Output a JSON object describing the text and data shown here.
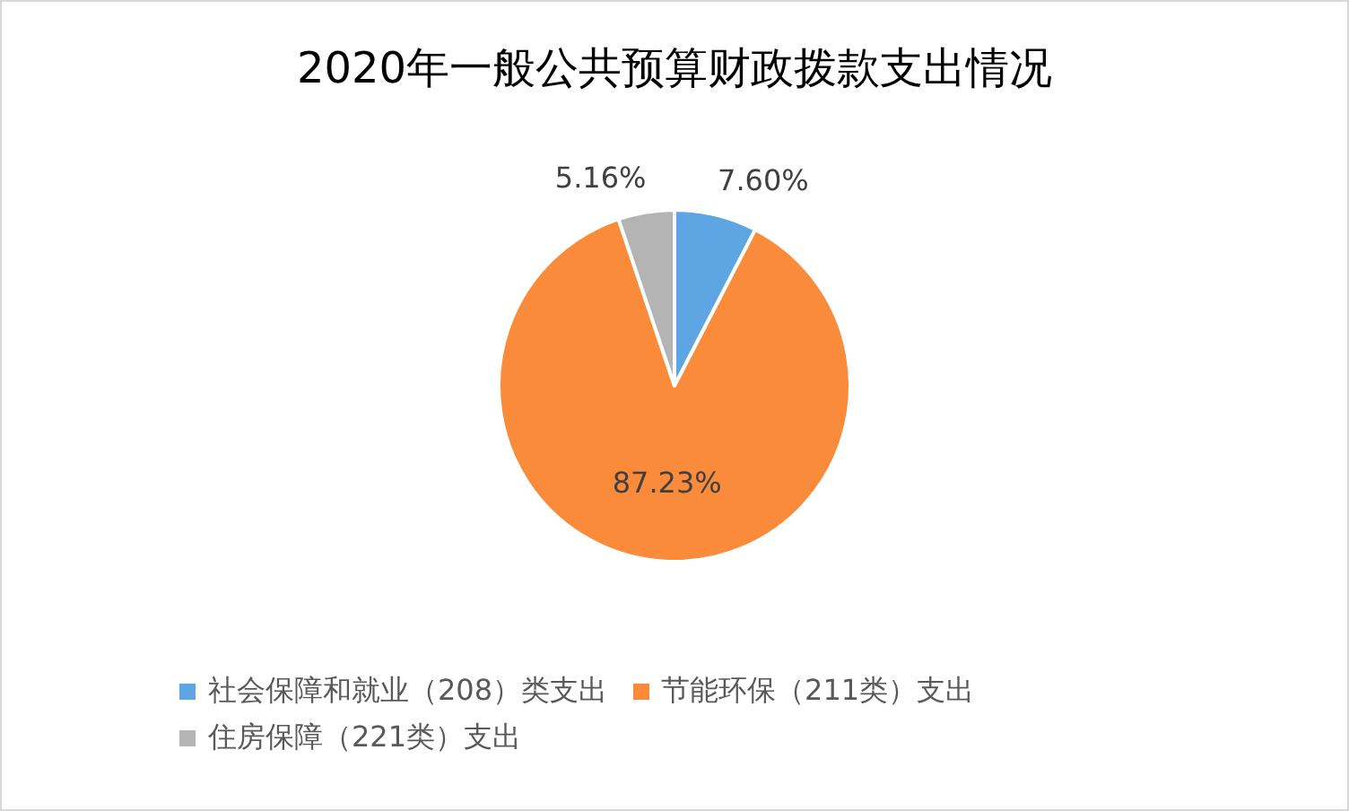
{
  "chart_data": {
    "type": "pie",
    "title": "2020年一般公共预算财政拨款支出情况",
    "categories": [
      "社会保障和就业（208）类支出",
      "节能环保（211类）支出",
      "住房保障（221类）支出"
    ],
    "values": [
      7.6,
      87.23,
      5.16
    ],
    "colors": [
      "#5ea5e4",
      "#f98b3b",
      "#b4b4b4"
    ],
    "value_labels": [
      "7.60%",
      "87.23%",
      "5.16%"
    ],
    "legend": "bottom"
  }
}
